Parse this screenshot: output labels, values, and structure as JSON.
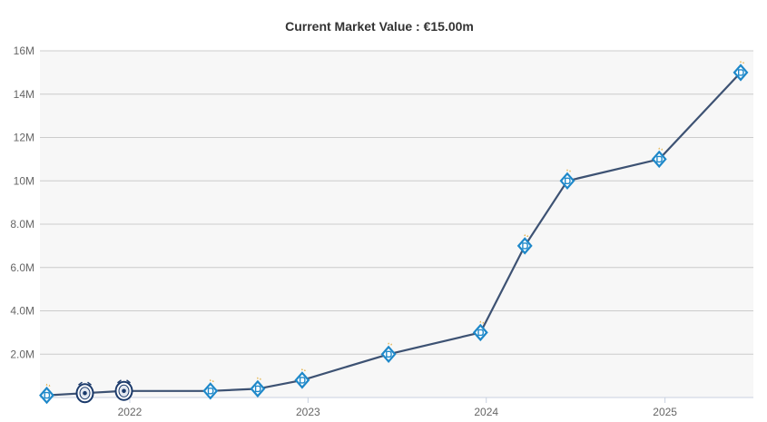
{
  "chart_data": {
    "type": "line",
    "title": "Current Market Value : €15.00m",
    "xlabel": "",
    "ylabel": "",
    "x_ticks": [
      "2022",
      "2023",
      "2024",
      "2025"
    ],
    "y_ticks": [
      "2.0M",
      "4.0M",
      "6.0M",
      "8.0M",
      "10M",
      "12M",
      "14M",
      "16M"
    ],
    "ylim": [
      0,
      16
    ],
    "y_unit": "millions €",
    "grid": true,
    "series": [
      {
        "points": [
          {
            "date": "2021-07-15",
            "value": 0.1,
            "badge": "dynamo-crest"
          },
          {
            "date": "2021-10-01",
            "value": 0.2,
            "badge": "club-crest-oval"
          },
          {
            "date": "2021-12-20",
            "value": 0.3,
            "badge": "club-crest-oval"
          },
          {
            "date": "2022-06-15",
            "value": 0.3,
            "badge": "dynamo-crest"
          },
          {
            "date": "2022-09-20",
            "value": 0.4,
            "badge": "dynamo-crest"
          },
          {
            "date": "2022-12-20",
            "value": 0.8,
            "badge": "dynamo-crest"
          },
          {
            "date": "2023-06-15",
            "value": 2.0,
            "badge": "dynamo-crest"
          },
          {
            "date": "2023-12-20",
            "value": 3.0,
            "badge": "dynamo-crest"
          },
          {
            "date": "2024-03-20",
            "value": 7.0,
            "badge": "dynamo-crest"
          },
          {
            "date": "2024-06-15",
            "value": 10.0,
            "badge": "dynamo-crest"
          },
          {
            "date": "2024-12-20",
            "value": 11.0,
            "badge": "dynamo-crest"
          },
          {
            "date": "2025-06-05",
            "value": 15.0,
            "badge": "dynamo-crest"
          }
        ]
      }
    ]
  },
  "colors": {
    "line": "#3d5273",
    "plot_bg": "#f7f7f7",
    "grid": "#cccccc",
    "crest_blue": "#1e88c9",
    "crest_star": "#e0a528"
  }
}
